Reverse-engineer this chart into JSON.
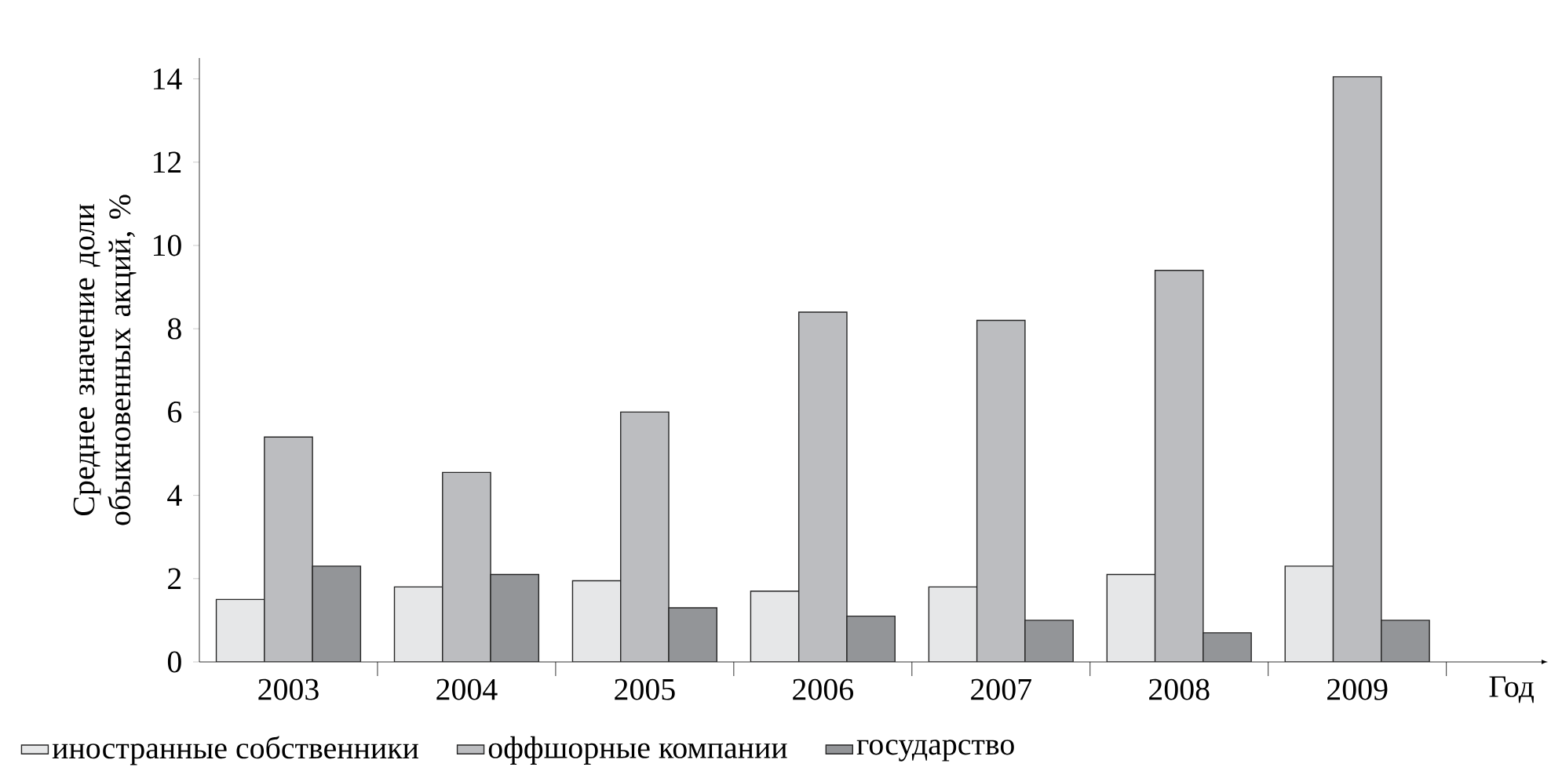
{
  "chart_data": {
    "type": "bar",
    "categories": [
      "2003",
      "2004",
      "2005",
      "2006",
      "2007",
      "2008",
      "2009"
    ],
    "xlabel": "Год",
    "ylabel": "Среднее значение доли обыкновенных акций, %",
    "ylim": [
      0,
      14.5
    ],
    "yticks": [
      0,
      2,
      4,
      6,
      8,
      10,
      12,
      14
    ],
    "legend": "bottom",
    "series": [
      {
        "name": "иностранные собственники",
        "color": "#e6e7e8",
        "values": [
          1.5,
          1.8,
          1.95,
          1.7,
          1.8,
          2.1,
          2.3
        ]
      },
      {
        "name": "оффшорные компании",
        "color": "#bcbdc0",
        "values": [
          5.4,
          4.55,
          6.0,
          8.4,
          8.2,
          9.4,
          14.05
        ]
      },
      {
        "name": "государство",
        "color": "#939598",
        "values": [
          2.3,
          2.1,
          1.3,
          1.1,
          1.0,
          0.7,
          1.0
        ]
      }
    ]
  }
}
